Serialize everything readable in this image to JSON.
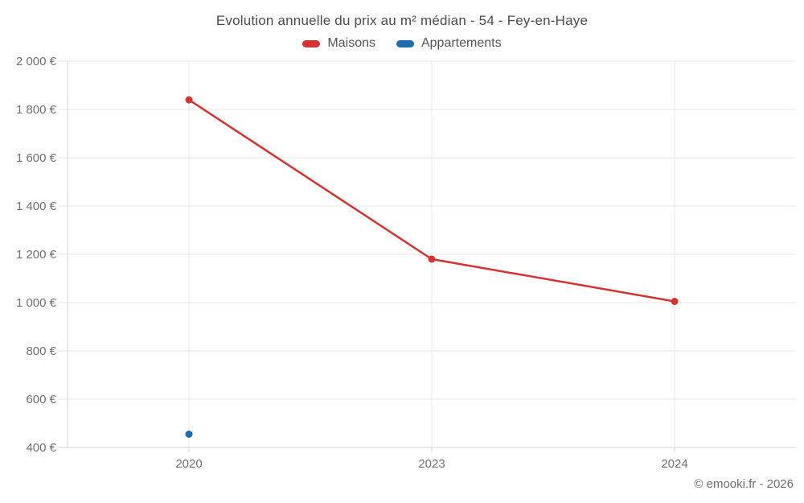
{
  "chart_data": {
    "type": "line",
    "title": "Evolution annuelle du prix au m² médian - 54 - Fey-en-Haye",
    "categories": [
      "2020",
      "2023",
      "2024"
    ],
    "series": [
      {
        "name": "Maisons",
        "color": "#d63230",
        "values": [
          1840,
          1180,
          1005
        ]
      },
      {
        "name": "Appartements",
        "color": "#1f6da8",
        "values": [
          455,
          null,
          null
        ]
      }
    ],
    "ylim": [
      400,
      2000
    ],
    "ytick_step": 200,
    "ytick_suffix": " €",
    "xlabel": "",
    "ylabel": "",
    "grid": true,
    "legend_position": "top",
    "gridline_color": "#e7e7e7",
    "axis_line_color": "#d6d6d6"
  },
  "footer": {
    "copyright": "© emooki.fr - 2026"
  }
}
